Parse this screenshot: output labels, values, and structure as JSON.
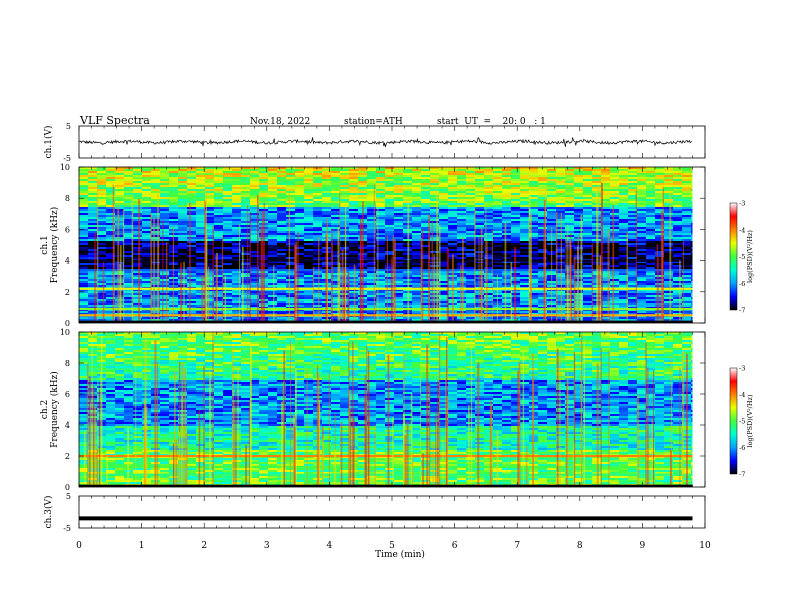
{
  "header": {
    "title": "VLF  Spectra",
    "date": "Nov.18, 2022",
    "station": "station=ATH",
    "start": "start  UT  =    20: 0   : 1"
  },
  "chart_data": [
    {
      "id": "ch1-waveform",
      "type": "line",
      "ylabel": "ch.1(V)",
      "ylim": [
        -5,
        5
      ],
      "y_ticks": [
        "5",
        "-5"
      ],
      "xlim": [
        0,
        10
      ],
      "data_extent_min": [
        0,
        9.8
      ],
      "trace": "noisy waveform near 0 V, sporadic spikes",
      "color": "#000000"
    },
    {
      "id": "ch1-spectrogram",
      "type": "heatmap",
      "ylabel_line1": "ch.1",
      "ylabel_line2": "Frequency  (kHz)",
      "ylim": [
        0,
        10
      ],
      "y_ticks": [
        "0",
        "2",
        "4",
        "6",
        "8",
        "10"
      ],
      "xlim": [
        0,
        10
      ],
      "data_extent_min": [
        0,
        9.8
      ],
      "colorbar": {
        "label": "log(PSD)(V²/Hz)",
        "range": [
          -7,
          -3
        ],
        "ticks": [
          "-3",
          "-4",
          "-5",
          "-6",
          "-7"
        ],
        "colors": [
          "#000000",
          "#0000ff",
          "#00a0ff",
          "#00ffd0",
          "#40ff40",
          "#e8ff00",
          "#ff8000",
          "#ff0000",
          "#ffffff"
        ]
      },
      "bands_khz": [
        {
          "f": 4.0,
          "level": -6.9
        },
        {
          "f": 3.4,
          "level": -6.2
        },
        {
          "f": 2.2,
          "level": -4.5
        },
        {
          "f": 0.9,
          "level": -4.8
        },
        {
          "f": 0.5,
          "level": -4.2
        }
      ]
    },
    {
      "id": "ch2-spectrogram",
      "type": "heatmap",
      "ylabel_line1": "ch.2",
      "ylabel_line2": "Frequency  (kHz)",
      "ylim": [
        0,
        10
      ],
      "y_ticks": [
        "0",
        "2",
        "4",
        "6",
        "8",
        "10"
      ],
      "xlim": [
        0,
        10
      ],
      "data_extent_min": [
        0,
        9.8
      ],
      "colorbar": {
        "label": "log(PSD)(V²/Hz)",
        "range": [
          -7,
          -3
        ],
        "ticks": [
          "-3",
          "-4",
          "-5",
          "-6",
          "-7"
        ],
        "colors": [
          "#000000",
          "#0000ff",
          "#00a0ff",
          "#00ffd0",
          "#40ff40",
          "#e8ff00",
          "#ff8000",
          "#ff0000",
          "#ffffff"
        ]
      },
      "bands_khz": [
        {
          "f": 2.0,
          "level": -4.0
        },
        {
          "f": 1.3,
          "level": -5.0
        },
        {
          "f": 0.8,
          "level": -5.2
        }
      ]
    },
    {
      "id": "ch3-waveform",
      "type": "line",
      "ylabel": "ch.3(V)",
      "ylim": [
        -5,
        5
      ],
      "y_ticks": [
        "5",
        "-5"
      ],
      "xlim": [
        0,
        10
      ],
      "data_extent_min": [
        0,
        9.8
      ],
      "constant_value": -2,
      "color": "#000000"
    }
  ],
  "xaxis": {
    "label": "Time  (min)",
    "ticks": [
      "0",
      "1",
      "2",
      "3",
      "4",
      "5",
      "6",
      "7",
      "8",
      "9",
      "10"
    ],
    "range": [
      0,
      10
    ]
  }
}
